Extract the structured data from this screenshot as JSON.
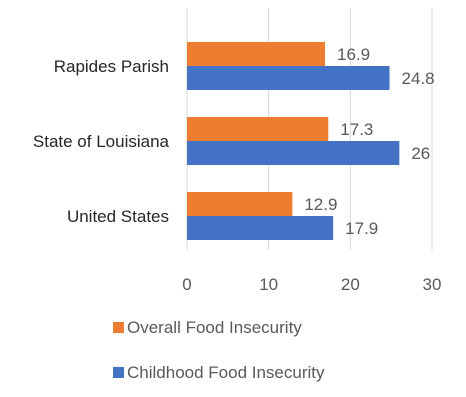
{
  "chart_data": {
    "type": "bar",
    "orientation": "horizontal",
    "categories": [
      "Rapides Parish",
      "State of Louisiana",
      "United States"
    ],
    "series": [
      {
        "name": "Overall Food Insecurity",
        "values": [
          16.9,
          17.3,
          12.9
        ],
        "color": "#ED7D31"
      },
      {
        "name": "Childhood Food Insecurity",
        "values": [
          24.8,
          26,
          17.9
        ],
        "color": "#4472C4"
      }
    ],
    "xlim": [
      0,
      30
    ],
    "ticks": [
      0,
      10,
      20,
      30
    ],
    "tick_labels": [
      "0",
      "10",
      "20",
      "30"
    ],
    "data_labels": [
      [
        "16.9",
        "17.3",
        "12.9"
      ],
      [
        "24.8",
        "26",
        "17.9"
      ]
    ],
    "grid": "vertical",
    "legend_position": "bottom"
  }
}
